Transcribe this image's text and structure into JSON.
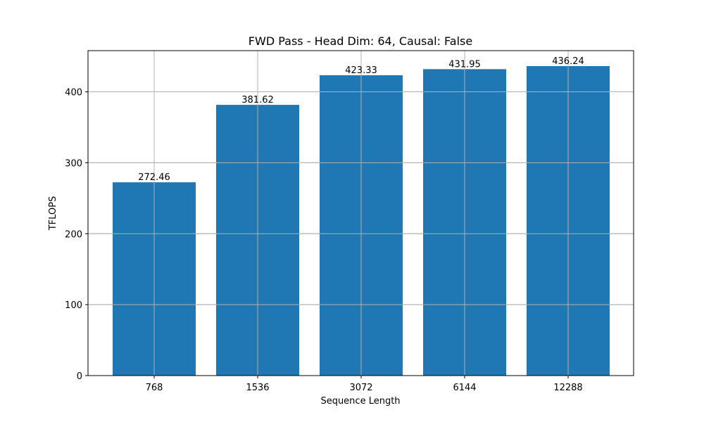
{
  "chart_data": {
    "type": "bar",
    "title": "FWD Pass - Head Dim: 64, Causal: False",
    "xlabel": "Sequence Length",
    "ylabel": "TFLOPS",
    "categories": [
      "768",
      "1536",
      "3072",
      "6144",
      "12288"
    ],
    "values": [
      272.46,
      381.62,
      423.33,
      431.95,
      436.24
    ],
    "data_labels": [
      "272.46",
      "381.62",
      "423.33",
      "431.95",
      "436.24"
    ],
    "yticks": [
      0,
      100,
      200,
      300,
      400
    ],
    "ylim": [
      0,
      458.05
    ],
    "grid": true,
    "bar_color": "#1f77b4",
    "grid_color": "#b0b0b0"
  }
}
